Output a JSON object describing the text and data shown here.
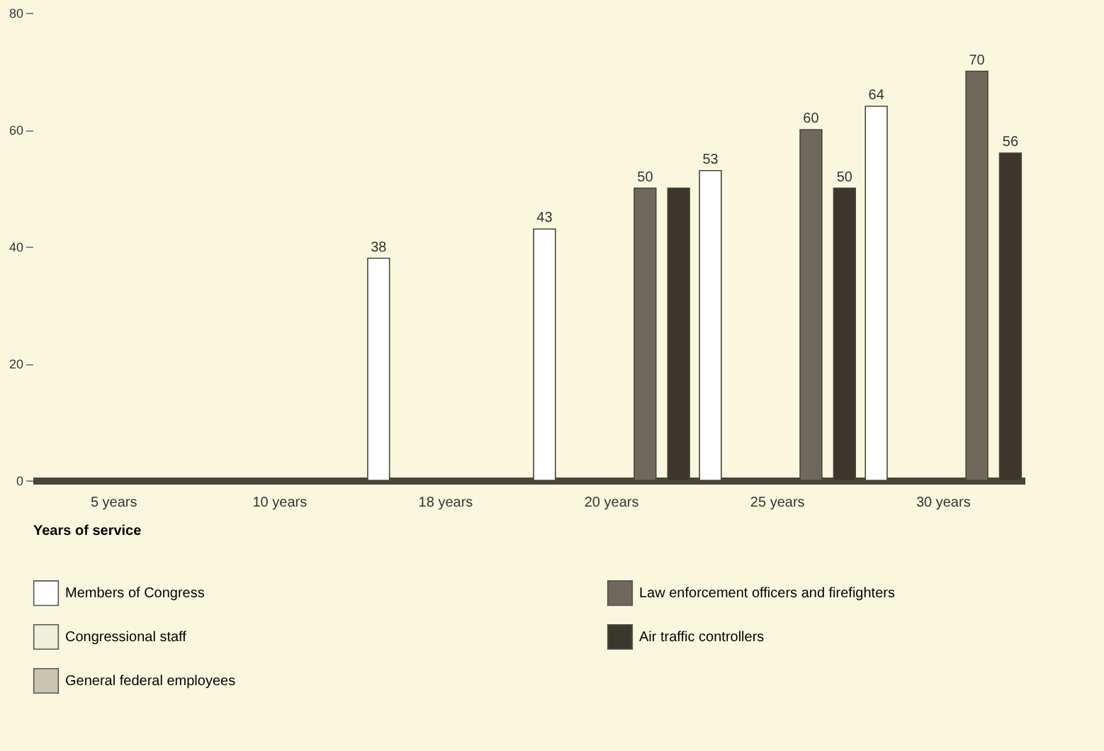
{
  "chart_data": {
    "type": "bar",
    "xlabel": "Years of service",
    "categories": [
      "5 years",
      "10 years",
      "18 years",
      "20 years",
      "25 years",
      "30 years"
    ],
    "series": [
      {
        "name": "Members of Congress",
        "color": "#ffffff",
        "values": [
          0,
          0,
          38,
          43,
          53,
          64
        ],
        "value_labels": [
          null,
          null,
          "38",
          "43",
          "53",
          "64"
        ]
      },
      {
        "name": "Congressional staff",
        "color": "#f1eed9",
        "values": [
          0,
          0,
          0,
          0,
          0,
          0
        ],
        "value_labels": [
          null,
          null,
          null,
          null,
          null,
          null
        ]
      },
      {
        "name": "General federal employees",
        "color": "#c9c5b1",
        "values": [
          0,
          0,
          0,
          0,
          0,
          0
        ],
        "value_labels": [
          null,
          null,
          null,
          null,
          null,
          null
        ]
      },
      {
        "name": "Law enforcement officers and firefighters",
        "color": "#6e695a",
        "values": [
          0,
          0,
          0,
          50,
          60,
          70
        ],
        "value_labels": [
          null,
          null,
          null,
          "50",
          "60",
          "70"
        ]
      },
      {
        "name": "Air traffic controllers",
        "color": "#3b372c",
        "values": [
          0,
          0,
          0,
          50,
          50,
          56
        ],
        "value_labels": [
          null,
          null,
          null,
          null,
          "50",
          "56"
        ]
      }
    ],
    "ylim": [
      0,
      80
    ],
    "yticks": [
      0,
      20,
      40,
      60,
      80
    ],
    "grid": false,
    "legend": "bottom"
  }
}
